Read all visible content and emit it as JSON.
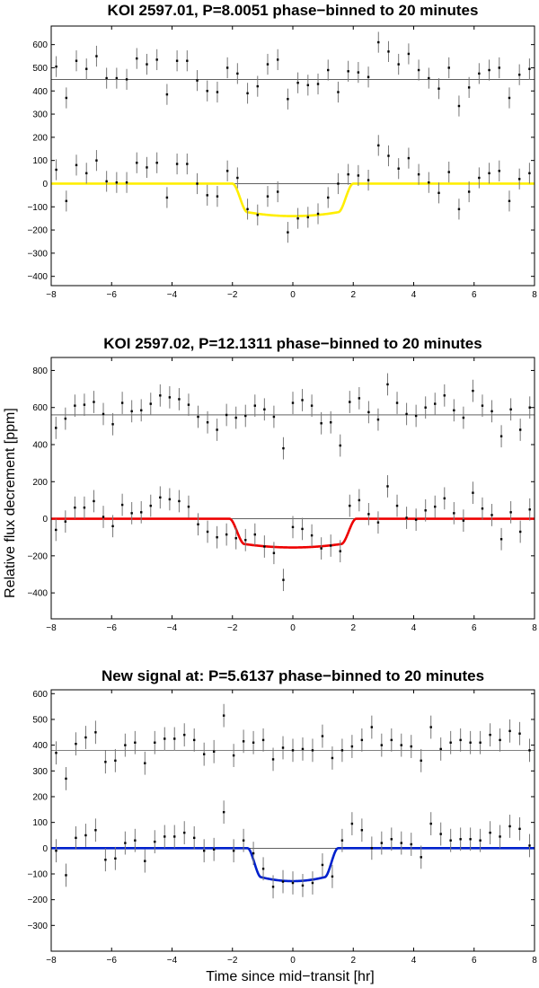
{
  "figure": {
    "ylabel": "Relative flux decrement [ppm]",
    "xlabel": "Time since mid−transit [hr]"
  },
  "chart_data": [
    {
      "type": "scatter",
      "title": "KOI 2597.01, P=8.0051 phase−binned to 20 minutes",
      "xlim": [
        -8,
        8
      ],
      "ylim": [
        -440,
        680
      ],
      "xticks": [
        -8,
        -6,
        -4,
        -2,
        0,
        2,
        4,
        6,
        8
      ],
      "yticks": [
        -400,
        -300,
        -200,
        -100,
        0,
        100,
        200,
        300,
        400,
        500,
        600
      ],
      "grid": false,
      "offset_baseline": 450,
      "model_color": "#ffee00",
      "model": {
        "depth": 140,
        "t_half": 2.0,
        "t_ingress": 0.5
      },
      "series": [
        {
          "role": "offset",
          "y": [
            505,
            370,
            530,
            495,
            550,
            455,
            455,
            450,
            540,
            515,
            535,
            385,
            530,
            530,
            445,
            400,
            395,
            500,
            475,
            390,
            420,
            515,
            535,
            365,
            435,
            425,
            430,
            490,
            395,
            485,
            480,
            460,
            610,
            570,
            515,
            560,
            490,
            455,
            410,
            500,
            335,
            415,
            475,
            490,
            500,
            370,
            470,
            495
          ],
          "err": [
            45,
            45,
            45,
            45,
            45,
            45,
            45,
            45,
            45,
            45,
            45,
            45,
            45,
            45,
            45,
            45,
            45,
            45,
            45,
            45,
            45,
            45,
            45,
            45,
            45,
            45,
            45,
            45,
            45,
            45,
            45,
            45,
            45,
            45,
            45,
            45,
            45,
            45,
            45,
            45,
            45,
            45,
            45,
            45,
            45,
            45,
            45,
            45
          ]
        },
        {
          "role": "detrended",
          "y": [
            60,
            -75,
            80,
            45,
            100,
            10,
            5,
            5,
            90,
            70,
            90,
            -60,
            85,
            85,
            0,
            -50,
            -55,
            55,
            25,
            -110,
            -135,
            -55,
            -35,
            -210,
            -150,
            -145,
            -130,
            -60,
            0,
            40,
            35,
            15,
            165,
            120,
            65,
            110,
            40,
            5,
            -40,
            50,
            -110,
            -35,
            25,
            45,
            55,
            -75,
            20,
            45
          ],
          "err": [
            45,
            45,
            45,
            45,
            45,
            45,
            45,
            45,
            45,
            45,
            45,
            45,
            45,
            45,
            45,
            45,
            45,
            45,
            45,
            45,
            45,
            45,
            45,
            45,
            45,
            45,
            45,
            45,
            45,
            45,
            45,
            45,
            45,
            45,
            45,
            45,
            45,
            45,
            45,
            45,
            45,
            45,
            45,
            45,
            45,
            45,
            45,
            45
          ]
        }
      ]
    },
    {
      "type": "scatter",
      "title": "KOI 2597.02, P=12.1311 phase−binned to 20 minutes",
      "xlim": [
        -8,
        8
      ],
      "ylim": [
        -540,
        870
      ],
      "xticks": [
        -8,
        -6,
        -4,
        -2,
        0,
        2,
        4,
        6,
        8
      ],
      "yticks": [
        -400,
        -200,
        0,
        200,
        400,
        600,
        800
      ],
      "grid": false,
      "offset_baseline": 560,
      "model_color": "#ee0000",
      "model": {
        "depth": 155,
        "t_half": 2.1,
        "t_ingress": 0.5
      },
      "series": [
        {
          "role": "offset",
          "y": [
            490,
            540,
            610,
            615,
            630,
            565,
            510,
            625,
            580,
            585,
            620,
            665,
            655,
            645,
            615,
            550,
            520,
            480,
            560,
            545,
            555,
            610,
            590,
            550,
            380,
            625,
            640,
            610,
            515,
            520,
            395,
            630,
            650,
            575,
            535,
            725,
            625,
            565,
            555,
            600,
            620,
            665,
            585,
            545,
            690,
            610,
            580,
            445,
            590,
            480,
            600
          ],
          "err": [
            60,
            60,
            60,
            60,
            60,
            60,
            60,
            60,
            60,
            60,
            60,
            60,
            60,
            60,
            60,
            60,
            60,
            60,
            60,
            60,
            60,
            60,
            60,
            60,
            60,
            60,
            60,
            60,
            60,
            60,
            60,
            60,
            60,
            60,
            60,
            60,
            60,
            60,
            60,
            60,
            60,
            60,
            60,
            60,
            60,
            60,
            60,
            60,
            60,
            60,
            60
          ]
        },
        {
          "role": "detrended",
          "y": [
            -60,
            -15,
            60,
            60,
            95,
            10,
            -40,
            75,
            30,
            35,
            70,
            115,
            105,
            95,
            65,
            -30,
            -70,
            -100,
            -85,
            -105,
            -115,
            -85,
            -150,
            -185,
            -330,
            -45,
            -55,
            -90,
            -160,
            -145,
            -175,
            70,
            100,
            25,
            -20,
            175,
            70,
            5,
            -5,
            45,
            65,
            110,
            30,
            -10,
            140,
            55,
            20,
            -110,
            35,
            -70,
            50
          ],
          "err": [
            60,
            60,
            60,
            60,
            60,
            60,
            60,
            60,
            60,
            60,
            60,
            60,
            60,
            60,
            60,
            60,
            60,
            60,
            60,
            60,
            60,
            60,
            60,
            60,
            60,
            60,
            60,
            60,
            60,
            60,
            60,
            60,
            60,
            60,
            60,
            60,
            60,
            60,
            60,
            60,
            60,
            60,
            60,
            60,
            60,
            60,
            60,
            60,
            60,
            60,
            60
          ]
        }
      ]
    },
    {
      "type": "scatter",
      "title": "New signal at: P=5.6137 phase−binned to 20 minutes",
      "xlim": [
        -8,
        8
      ],
      "ylim": [
        -400,
        615
      ],
      "xticks": [
        -8,
        -6,
        -4,
        -2,
        0,
        2,
        4,
        6,
        8
      ],
      "yticks": [
        -300,
        -200,
        -100,
        0,
        100,
        200,
        300,
        400,
        500,
        600
      ],
      "grid": false,
      "offset_baseline": 380,
      "model_color": "#0020cc",
      "model": {
        "depth": 128,
        "t_half": 1.5,
        "t_ingress": 0.45
      },
      "series": [
        {
          "role": "offset",
          "y": [
            370,
            270,
            405,
            430,
            450,
            335,
            340,
            400,
            410,
            330,
            410,
            425,
            425,
            440,
            420,
            365,
            375,
            515,
            360,
            415,
            410,
            420,
            345,
            390,
            380,
            385,
            380,
            435,
            350,
            380,
            395,
            420,
            470,
            400,
            420,
            400,
            395,
            340,
            470,
            385,
            410,
            420,
            410,
            410,
            440,
            420,
            455,
            445,
            380
          ],
          "err": [
            45,
            45,
            45,
            45,
            45,
            45,
            45,
            45,
            45,
            45,
            45,
            45,
            45,
            45,
            45,
            45,
            45,
            45,
            45,
            45,
            45,
            45,
            45,
            45,
            45,
            45,
            45,
            45,
            45,
            45,
            45,
            45,
            45,
            45,
            45,
            45,
            45,
            45,
            45,
            45,
            45,
            45,
            45,
            45,
            45,
            45,
            45,
            45,
            45
          ]
        },
        {
          "role": "detrended",
          "y": [
            -10,
            -105,
            40,
            50,
            70,
            -45,
            -40,
            20,
            30,
            -50,
            25,
            45,
            45,
            60,
            40,
            -10,
            -5,
            140,
            -10,
            30,
            -20,
            -80,
            -150,
            -130,
            -135,
            -145,
            -135,
            -65,
            -110,
            30,
            95,
            70,
            0,
            20,
            35,
            20,
            15,
            -35,
            95,
            55,
            30,
            35,
            35,
            30,
            60,
            45,
            85,
            75,
            10
          ],
          "err": [
            45,
            45,
            45,
            45,
            45,
            45,
            45,
            45,
            45,
            45,
            45,
            45,
            45,
            45,
            45,
            45,
            45,
            45,
            45,
            45,
            45,
            45,
            45,
            45,
            45,
            45,
            45,
            45,
            45,
            45,
            45,
            45,
            45,
            45,
            45,
            45,
            45,
            45,
            45,
            45,
            45,
            45,
            45,
            45,
            45,
            45,
            45,
            45,
            45
          ]
        }
      ]
    }
  ]
}
